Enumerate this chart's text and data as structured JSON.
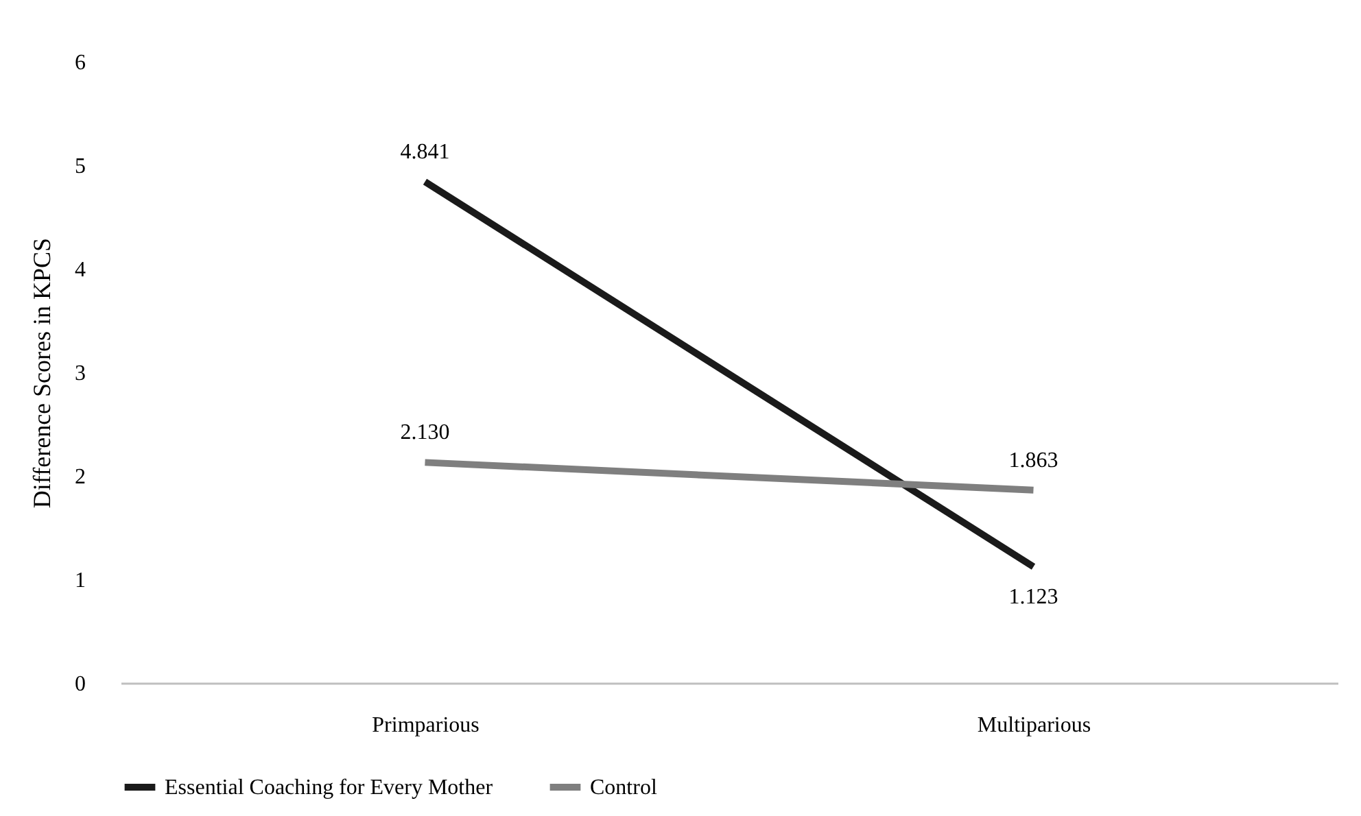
{
  "chart_data": {
    "type": "line",
    "ylabel": "Difference Scores in KPCS",
    "categories": [
      "Primparious",
      "Multiparious"
    ],
    "series": [
      {
        "name": "Essential Coaching for Every Mother",
        "color": "#1a1a1a",
        "values": [
          4.841,
          1.123
        ],
        "value_labels": [
          "4.841",
          "1.123"
        ]
      },
      {
        "name": "Control",
        "color": "#7f7f7f",
        "values": [
          2.13,
          1.863
        ],
        "value_labels": [
          "2.130",
          "1.863"
        ]
      }
    ],
    "ylim": [
      0,
      6
    ],
    "yticks": [
      0,
      1,
      2,
      3,
      4,
      5,
      6
    ],
    "grid": false,
    "legend": "bottom",
    "marker": "none",
    "line_style": "solid"
  }
}
